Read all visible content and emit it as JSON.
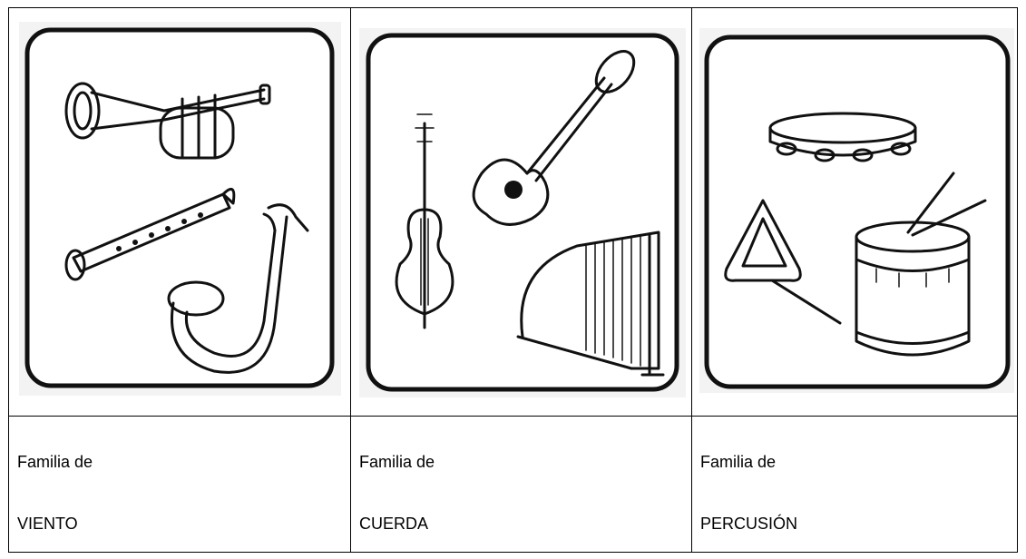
{
  "cells": [
    {
      "line1": "Familia de",
      "line2": "VIENTO"
    },
    {
      "line1": "Familia de",
      "line2": "CUERDA"
    },
    {
      "line1": "Familia de",
      "line2": "PERCUSIÓN"
    }
  ]
}
